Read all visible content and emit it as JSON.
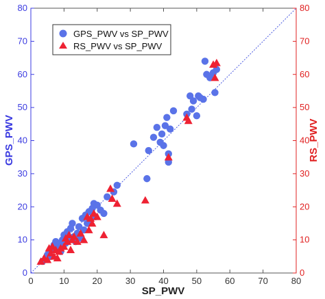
{
  "chart_data": {
    "type": "scatter",
    "xlabel": "SP_PWV",
    "ylabel_left": "GPS_PWV",
    "ylabel_right": "RS_PWV",
    "xlim": [
      0,
      80
    ],
    "ylim": [
      0,
      80
    ],
    "x_ticks": [
      "0",
      "10",
      "20",
      "30",
      "40",
      "50",
      "60",
      "70",
      "80"
    ],
    "y_ticks": [
      "0",
      "10",
      "20",
      "30",
      "40",
      "50",
      "60",
      "70",
      "80"
    ],
    "grid": false,
    "legend_position": "top-left",
    "reference_line": "y = x (dotted)",
    "colors": {
      "gps": "#5a73e8",
      "rs": "#ee2233",
      "left_axis": "#3a3ae0",
      "right_axis": "#e02020",
      "line": "#4a5ae0"
    },
    "series": [
      {
        "name": "GPS_PWV vs SP_PWV",
        "marker": "circle",
        "points": [
          [
            3.5,
            3.5
          ],
          [
            4.5,
            4.5
          ],
          [
            5,
            5.5
          ],
          [
            5.5,
            6.5
          ],
          [
            6,
            5
          ],
          [
            6.5,
            7.5
          ],
          [
            7,
            8.5
          ],
          [
            7.5,
            9.5
          ],
          [
            8,
            7
          ],
          [
            8.5,
            8.5
          ],
          [
            9,
            6.5
          ],
          [
            9.5,
            10
          ],
          [
            10,
            11.5
          ],
          [
            10.5,
            9
          ],
          [
            11,
            12.5
          ],
          [
            11.5,
            10
          ],
          [
            12,
            13.5
          ],
          [
            12.5,
            15
          ],
          [
            13,
            11
          ],
          [
            13.5,
            9.5
          ],
          [
            14,
            12
          ],
          [
            14.5,
            14
          ],
          [
            15,
            10.5
          ],
          [
            15.5,
            16.5
          ],
          [
            16,
            13
          ],
          [
            16.5,
            17.5
          ],
          [
            17,
            15
          ],
          [
            17.5,
            18.5
          ],
          [
            18,
            16
          ],
          [
            18.5,
            19.5
          ],
          [
            19,
            21
          ],
          [
            19.5,
            17
          ],
          [
            20,
            20.5
          ],
          [
            21,
            19
          ],
          [
            22,
            18
          ],
          [
            23,
            23
          ],
          [
            25,
            24.5
          ],
          [
            26,
            26.5
          ],
          [
            31,
            39
          ],
          [
            35,
            28.5
          ],
          [
            35.5,
            37
          ],
          [
            37,
            41
          ],
          [
            38,
            44
          ],
          [
            39,
            39.5
          ],
          [
            39.5,
            42
          ],
          [
            40,
            38.5
          ],
          [
            40.5,
            44.5
          ],
          [
            41,
            47
          ],
          [
            41.5,
            36
          ],
          [
            41.5,
            33.5
          ],
          [
            42,
            43.5
          ],
          [
            43,
            49
          ],
          [
            47,
            48
          ],
          [
            48,
            53.5
          ],
          [
            48.5,
            49.5
          ],
          [
            49,
            52
          ],
          [
            50,
            47.5
          ],
          [
            50.5,
            53.5
          ],
          [
            51,
            53
          ],
          [
            52,
            52.5
          ],
          [
            52.5,
            64
          ],
          [
            53,
            60
          ],
          [
            54,
            59
          ],
          [
            55,
            60.5
          ],
          [
            56,
            61.5
          ],
          [
            55.5,
            54.5
          ]
        ]
      },
      {
        "name": "RS_PWV vs SP_PWV",
        "marker": "triangle",
        "points": [
          [
            3,
            3.5
          ],
          [
            4,
            4.5
          ],
          [
            5,
            4
          ],
          [
            5.5,
            7.5
          ],
          [
            6,
            6
          ],
          [
            6.5,
            8
          ],
          [
            7,
            5
          ],
          [
            7.5,
            7
          ],
          [
            8,
            4.5
          ],
          [
            8.5,
            6.5
          ],
          [
            9,
            7.5
          ],
          [
            10,
            8
          ],
          [
            10.5,
            10.5
          ],
          [
            11,
            9.5
          ],
          [
            11.5,
            11.5
          ],
          [
            12,
            7
          ],
          [
            12.5,
            10
          ],
          [
            13,
            11
          ],
          [
            14,
            9.5
          ],
          [
            15,
            12
          ],
          [
            16,
            10
          ],
          [
            17,
            17
          ],
          [
            17.5,
            13
          ],
          [
            18,
            16.5
          ],
          [
            18.5,
            15
          ],
          [
            19,
            18
          ],
          [
            20,
            17
          ],
          [
            22,
            11.5
          ],
          [
            24,
            25.5
          ],
          [
            24.5,
            22.5
          ],
          [
            26,
            21
          ],
          [
            34.5,
            22
          ],
          [
            41.5,
            35
          ],
          [
            47,
            47
          ],
          [
            47.5,
            46
          ],
          [
            55,
            63
          ],
          [
            55.5,
            59
          ],
          [
            56,
            63.5
          ]
        ]
      }
    ]
  }
}
